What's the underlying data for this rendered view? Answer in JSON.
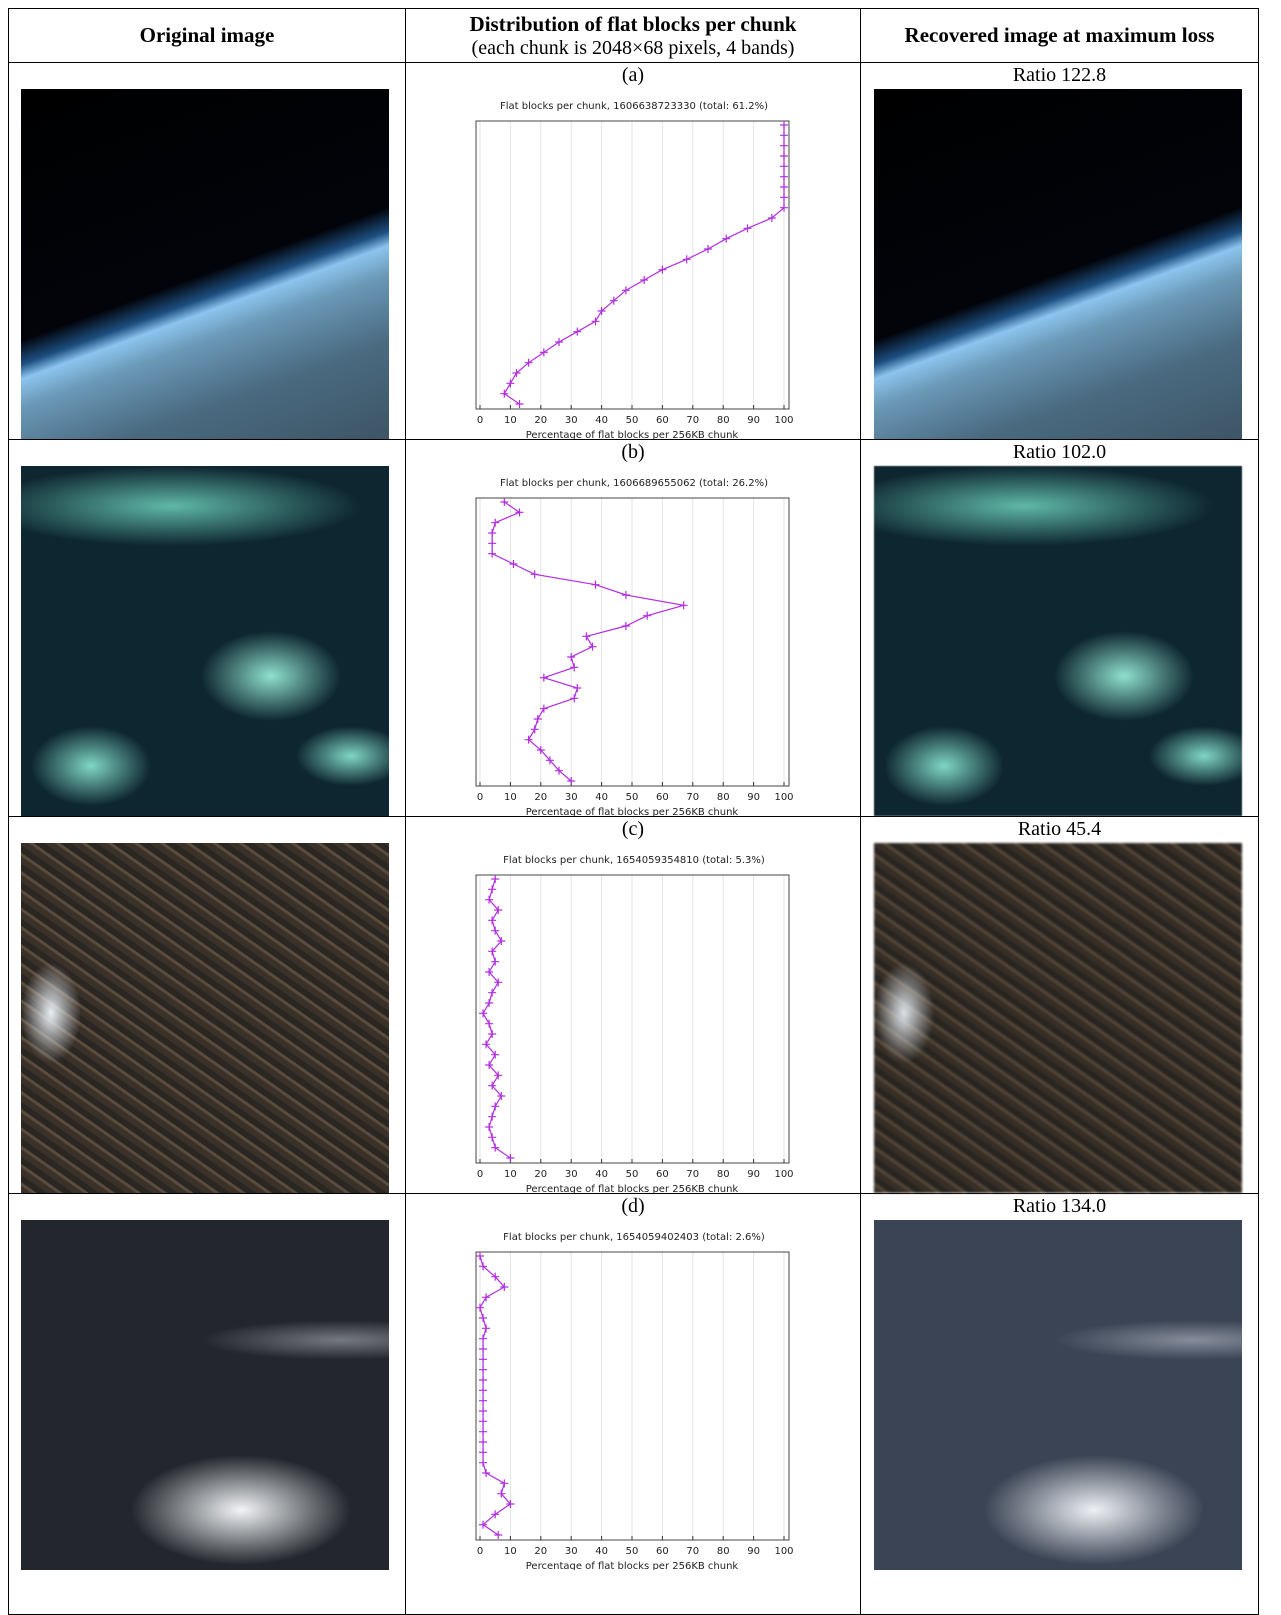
{
  "header": {
    "original": "Original image",
    "distribution_title": "Distribution of flat blocks per chunk",
    "distribution_subtitle": "(each chunk is 2048×68 pixels, 4 bands)",
    "recovered": "Recovered image at maximum loss"
  },
  "rows": [
    {
      "label": "(a)",
      "ratio": "Ratio 122.8",
      "chart": {
        "type": "line",
        "title": "Flat blocks per chunk, 1606638723330 (total: 61.2%)",
        "x_label": "Percentage of flat blocks per 256KB chunk",
        "color": "#b02ee0",
        "xlim": [
          0,
          100
        ],
        "xticks": [
          0,
          10,
          20,
          30,
          40,
          50,
          60,
          70,
          80,
          90,
          100
        ],
        "grid": true,
        "values": [
          100,
          100,
          100,
          100,
          100,
          100,
          100,
          100,
          100,
          96,
          88,
          81,
          75,
          68,
          60,
          54,
          48,
          44,
          40,
          38,
          32,
          26,
          21,
          16,
          12,
          10,
          8,
          13
        ]
      }
    },
    {
      "label": "(b)",
      "ratio": "Ratio 102.0",
      "chart": {
        "type": "line",
        "title": "Flat blocks per chunk, 1606689655062 (total: 26.2%)",
        "x_label": "Percentage of flat blocks per 256KB chunk",
        "color": "#b02ee0",
        "xlim": [
          0,
          100
        ],
        "xticks": [
          0,
          10,
          20,
          30,
          40,
          50,
          60,
          70,
          80,
          90,
          100
        ],
        "grid": true,
        "values": [
          8,
          13,
          5,
          4,
          4,
          4,
          11,
          18,
          38,
          48,
          67,
          55,
          48,
          35,
          37,
          30,
          31,
          21,
          32,
          31,
          21,
          19,
          18,
          16,
          20,
          23,
          26,
          30
        ]
      }
    },
    {
      "label": "(c)",
      "ratio": "Ratio 45.4",
      "chart": {
        "type": "line",
        "title": "Flat blocks per chunk, 1654059354810 (total: 5.3%)",
        "x_label": "Percentage of flat blocks per 256KB chunk",
        "color": "#b02ee0",
        "xlim": [
          0,
          100
        ],
        "xticks": [
          0,
          10,
          20,
          30,
          40,
          50,
          60,
          70,
          80,
          90,
          100
        ],
        "grid": true,
        "values": [
          5,
          4,
          3,
          6,
          4,
          5,
          7,
          4,
          5,
          3,
          6,
          4,
          3,
          1,
          3,
          4,
          2,
          5,
          3,
          6,
          4,
          7,
          5,
          4,
          3,
          4,
          5,
          10
        ]
      }
    },
    {
      "label": "(d)",
      "ratio": "Ratio 134.0",
      "chart": {
        "type": "line",
        "title": "Flat blocks per chunk, 1654059402403 (total: 2.6%)",
        "x_label": "Percentage of flat blocks per 256KB chunk",
        "color": "#b02ee0",
        "xlim": [
          0,
          100
        ],
        "xticks": [
          0,
          10,
          20,
          30,
          40,
          50,
          60,
          70,
          80,
          90,
          100
        ],
        "grid": true,
        "values": [
          0,
          1,
          5,
          8,
          2,
          0,
          1,
          2,
          1,
          1,
          1,
          1,
          1,
          1,
          1,
          1,
          1,
          1,
          1,
          1,
          1,
          2,
          8,
          7,
          10,
          5,
          1,
          6
        ]
      }
    }
  ]
}
